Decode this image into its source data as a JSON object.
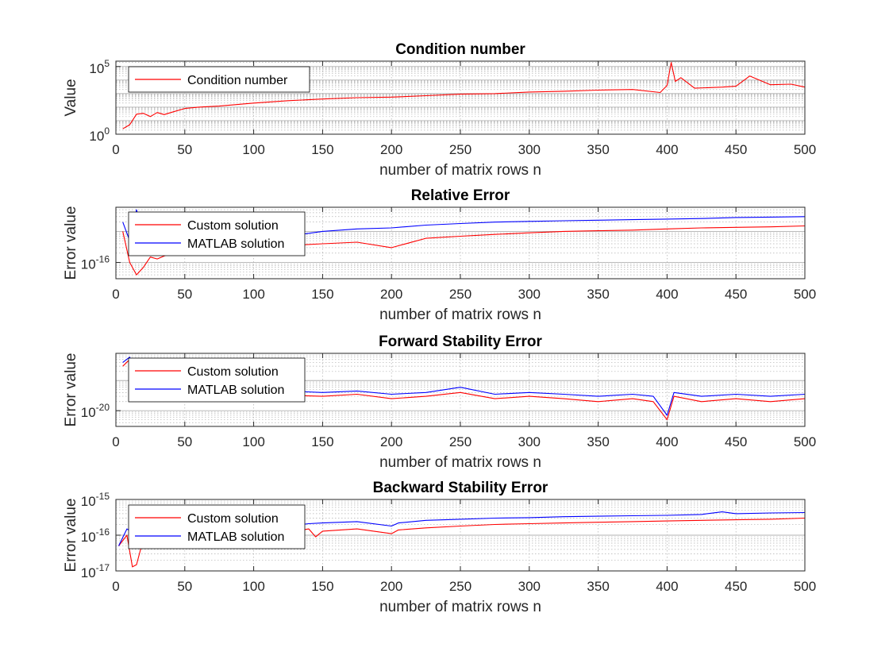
{
  "colors": {
    "custom": "#ff0000",
    "matlab": "#0000ff",
    "axis": "#262626",
    "grid": "#b0b0b0"
  },
  "chart_data": [
    {
      "type": "line",
      "title": "Condition number",
      "xlabel": "number of matrix rows n",
      "ylabel": "Value",
      "xlim": [
        0,
        500
      ],
      "ylim": [
        1,
        250000
      ],
      "yscale": "log",
      "xticks": [
        "0",
        "50",
        "100",
        "150",
        "200",
        "250",
        "300",
        "350",
        "400",
        "450",
        "500"
      ],
      "yticks": [
        {
          "base": "10",
          "exp": "0",
          "value": 1
        },
        {
          "base": "10",
          "exp": "5",
          "value": 100000
        }
      ],
      "grid": true,
      "legend_location": "top-left",
      "series": [
        {
          "name": "Condition number",
          "color": "#ff0000",
          "points": [
            [
              5,
              2.5
            ],
            [
              10,
              5
            ],
            [
              15,
              30
            ],
            [
              20,
              35
            ],
            [
              25,
              20
            ],
            [
              30,
              40
            ],
            [
              35,
              28
            ],
            [
              40,
              40
            ],
            [
              50,
              80
            ],
            [
              60,
              100
            ],
            [
              75,
              120
            ],
            [
              100,
              200
            ],
            [
              125,
              300
            ],
            [
              150,
              400
            ],
            [
              175,
              500
            ],
            [
              200,
              550
            ],
            [
              225,
              700
            ],
            [
              250,
              900
            ],
            [
              275,
              1000
            ],
            [
              300,
              1300
            ],
            [
              325,
              1500
            ],
            [
              350,
              1800
            ],
            [
              375,
              2000
            ],
            [
              395,
              1200
            ],
            [
              400,
              4000
            ],
            [
              403,
              200000
            ],
            [
              406,
              8000
            ],
            [
              410,
              15000
            ],
            [
              420,
              2500
            ],
            [
              440,
              3000
            ],
            [
              450,
              3500
            ],
            [
              460,
              20000
            ],
            [
              475,
              4500
            ],
            [
              490,
              5000
            ],
            [
              500,
              3000
            ]
          ]
        }
      ]
    },
    {
      "type": "line",
      "title": "Relative Error",
      "xlabel": "number of matrix rows n",
      "ylabel": "Error value",
      "xlim": [
        0,
        500
      ],
      "ylim": [
        3e-17,
        6e-15
      ],
      "yscale": "log",
      "xticks": [
        "0",
        "50",
        "100",
        "150",
        "200",
        "250",
        "300",
        "350",
        "400",
        "450",
        "500"
      ],
      "yticks": [
        {
          "base": "10",
          "exp": "-16",
          "value": 1e-16
        }
      ],
      "grid": true,
      "legend_location": "top-left",
      "series": [
        {
          "name": "Custom solution",
          "color": "#ff0000",
          "points": [
            [
              5,
              1e-15
            ],
            [
              10,
              1e-16
            ],
            [
              15,
              4e-17
            ],
            [
              20,
              7e-17
            ],
            [
              25,
              1.5e-16
            ],
            [
              30,
              1.3e-16
            ],
            [
              40,
              2e-16
            ],
            [
              50,
              2.2e-16
            ],
            [
              75,
              2.5e-16
            ],
            [
              100,
              3e-16
            ],
            [
              125,
              3.5e-16
            ],
            [
              150,
              4e-16
            ],
            [
              175,
              4.5e-16
            ],
            [
              200,
              3e-16
            ],
            [
              225,
              6e-16
            ],
            [
              250,
              7e-16
            ],
            [
              275,
              8e-16
            ],
            [
              300,
              9e-16
            ],
            [
              325,
              1e-15
            ],
            [
              350,
              1.05e-15
            ],
            [
              375,
              1.1e-15
            ],
            [
              400,
              1.2e-15
            ],
            [
              425,
              1.3e-15
            ],
            [
              450,
              1.35e-15
            ],
            [
              475,
              1.4e-15
            ],
            [
              500,
              1.5e-15
            ]
          ]
        },
        {
          "name": "MATLAB solution",
          "color": "#0000ff",
          "points": [
            [
              5,
              2e-15
            ],
            [
              10,
              5e-16
            ],
            [
              15,
              5e-15
            ],
            [
              20,
              8e-16
            ],
            [
              25,
              3e-16
            ],
            [
              30,
              2e-16
            ],
            [
              40,
              4e-16
            ],
            [
              50,
              4.5e-16
            ],
            [
              75,
              5e-16
            ],
            [
              100,
              6e-16
            ],
            [
              125,
              7e-16
            ],
            [
              150,
              1e-15
            ],
            [
              175,
              1.2e-15
            ],
            [
              200,
              1.3e-15
            ],
            [
              225,
              1.6e-15
            ],
            [
              250,
              1.8e-15
            ],
            [
              275,
              2e-15
            ],
            [
              300,
              2.1e-15
            ],
            [
              325,
              2.2e-15
            ],
            [
              350,
              2.3e-15
            ],
            [
              375,
              2.4e-15
            ],
            [
              400,
              2.5e-15
            ],
            [
              425,
              2.6e-15
            ],
            [
              450,
              2.8e-15
            ],
            [
              475,
              2.9e-15
            ],
            [
              500,
              3e-15
            ]
          ]
        }
      ]
    },
    {
      "type": "line",
      "title": "Forward Stability Error",
      "xlabel": "number of matrix rows n",
      "ylabel": "Error value",
      "xlim": [
        0,
        500
      ],
      "ylim": [
        3e-21,
        8e-19
      ],
      "yscale": "log",
      "xticks": [
        "0",
        "50",
        "100",
        "150",
        "200",
        "250",
        "300",
        "350",
        "400",
        "450",
        "500"
      ],
      "yticks": [
        {
          "base": "10",
          "exp": "-20",
          "value": 1e-20
        }
      ],
      "grid": true,
      "legend_location": "top-left",
      "series": [
        {
          "name": "Custom solution",
          "color": "#ff0000",
          "points": [
            [
              5,
              3e-19
            ],
            [
              10,
              5e-19
            ],
            [
              15,
              1.5e-19
            ],
            [
              25,
              5e-20
            ],
            [
              50,
              4e-20
            ],
            [
              100,
              3.5e-20
            ],
            [
              150,
              3e-20
            ],
            [
              175,
              3.5e-20
            ],
            [
              200,
              2.5e-20
            ],
            [
              225,
              3e-20
            ],
            [
              250,
              4e-20
            ],
            [
              275,
              2.5e-20
            ],
            [
              300,
              3e-20
            ],
            [
              325,
              2.5e-20
            ],
            [
              350,
              2e-20
            ],
            [
              375,
              2.5e-20
            ],
            [
              390,
              2e-20
            ],
            [
              400,
              5e-21
            ],
            [
              405,
              3e-20
            ],
            [
              425,
              2e-20
            ],
            [
              450,
              2.5e-20
            ],
            [
              475,
              2e-20
            ],
            [
              500,
              2.5e-20
            ]
          ]
        },
        {
          "name": "MATLAB solution",
          "color": "#0000ff",
          "points": [
            [
              5,
              4e-19
            ],
            [
              10,
              6e-19
            ],
            [
              15,
              2e-19
            ],
            [
              25,
              8e-20
            ],
            [
              50,
              6e-20
            ],
            [
              100,
              5e-20
            ],
            [
              150,
              4e-20
            ],
            [
              175,
              4.5e-20
            ],
            [
              200,
              3.5e-20
            ],
            [
              225,
              4e-20
            ],
            [
              250,
              6e-20
            ],
            [
              275,
              3.5e-20
            ],
            [
              300,
              4e-20
            ],
            [
              325,
              3.5e-20
            ],
            [
              350,
              3e-20
            ],
            [
              375,
              3.5e-20
            ],
            [
              390,
              3e-20
            ],
            [
              400,
              7e-21
            ],
            [
              405,
              4e-20
            ],
            [
              425,
              3e-20
            ],
            [
              450,
              3.5e-20
            ],
            [
              475,
              3e-20
            ],
            [
              500,
              3.5e-20
            ]
          ]
        }
      ]
    },
    {
      "type": "line",
      "title": "Backward Stability Error",
      "xlabel": "number of matrix rows n",
      "ylabel": "Error value",
      "xlim": [
        0,
        500
      ],
      "ylim": [
        1e-17,
        1e-15
      ],
      "yscale": "log",
      "xticks": [
        "0",
        "50",
        "100",
        "150",
        "200",
        "250",
        "300",
        "350",
        "400",
        "450",
        "500"
      ],
      "yticks": [
        {
          "base": "10",
          "exp": "-17",
          "value": 1e-17
        },
        {
          "base": "10",
          "exp": "-16",
          "value": 1e-16
        },
        {
          "base": "10",
          "exp": "-15",
          "value": 1e-15
        }
      ],
      "grid": true,
      "legend_location": "top-left",
      "series": [
        {
          "name": "Custom solution",
          "color": "#ff0000",
          "points": [
            [
              2,
              5e-17
            ],
            [
              8,
              1e-16
            ],
            [
              12,
              1.3e-17
            ],
            [
              15,
              1.5e-17
            ],
            [
              20,
              8e-17
            ],
            [
              30,
              5e-17
            ],
            [
              50,
              6e-17
            ],
            [
              75,
              7e-17
            ],
            [
              100,
              9e-17
            ],
            [
              125,
              1.2e-16
            ],
            [
              140,
              1.5e-16
            ],
            [
              145,
              9e-17
            ],
            [
              150,
              1.3e-16
            ],
            [
              175,
              1.5e-16
            ],
            [
              200,
              1.1e-16
            ],
            [
              205,
              1.4e-16
            ],
            [
              225,
              1.6e-16
            ],
            [
              250,
              1.8e-16
            ],
            [
              275,
              2e-16
            ],
            [
              300,
              2.1e-16
            ],
            [
              325,
              2.2e-16
            ],
            [
              350,
              2.3e-16
            ],
            [
              375,
              2.4e-16
            ],
            [
              400,
              2.5e-16
            ],
            [
              425,
              2.6e-16
            ],
            [
              450,
              2.7e-16
            ],
            [
              475,
              2.8e-16
            ],
            [
              500,
              3e-16
            ]
          ]
        },
        {
          "name": "MATLAB solution",
          "color": "#0000ff",
          "points": [
            [
              2,
              5e-17
            ],
            [
              8,
              1.5e-16
            ],
            [
              15,
              1e-16
            ],
            [
              20,
              1.1e-16
            ],
            [
              30,
              1e-16
            ],
            [
              50,
              1.1e-16
            ],
            [
              75,
              1.3e-16
            ],
            [
              100,
              1.5e-16
            ],
            [
              125,
              1.8e-16
            ],
            [
              140,
              2.1e-16
            ],
            [
              150,
              2.2e-16
            ],
            [
              175,
              2.4e-16
            ],
            [
              200,
              1.8e-16
            ],
            [
              205,
              2.2e-16
            ],
            [
              225,
              2.6e-16
            ],
            [
              250,
              2.8e-16
            ],
            [
              275,
              3e-16
            ],
            [
              300,
              3.1e-16
            ],
            [
              325,
              3.3e-16
            ],
            [
              350,
              3.4e-16
            ],
            [
              375,
              3.5e-16
            ],
            [
              400,
              3.6e-16
            ],
            [
              425,
              3.8e-16
            ],
            [
              440,
              4.5e-16
            ],
            [
              450,
              4e-16
            ],
            [
              475,
              4.2e-16
            ],
            [
              500,
              4.3e-16
            ]
          ]
        }
      ]
    }
  ]
}
